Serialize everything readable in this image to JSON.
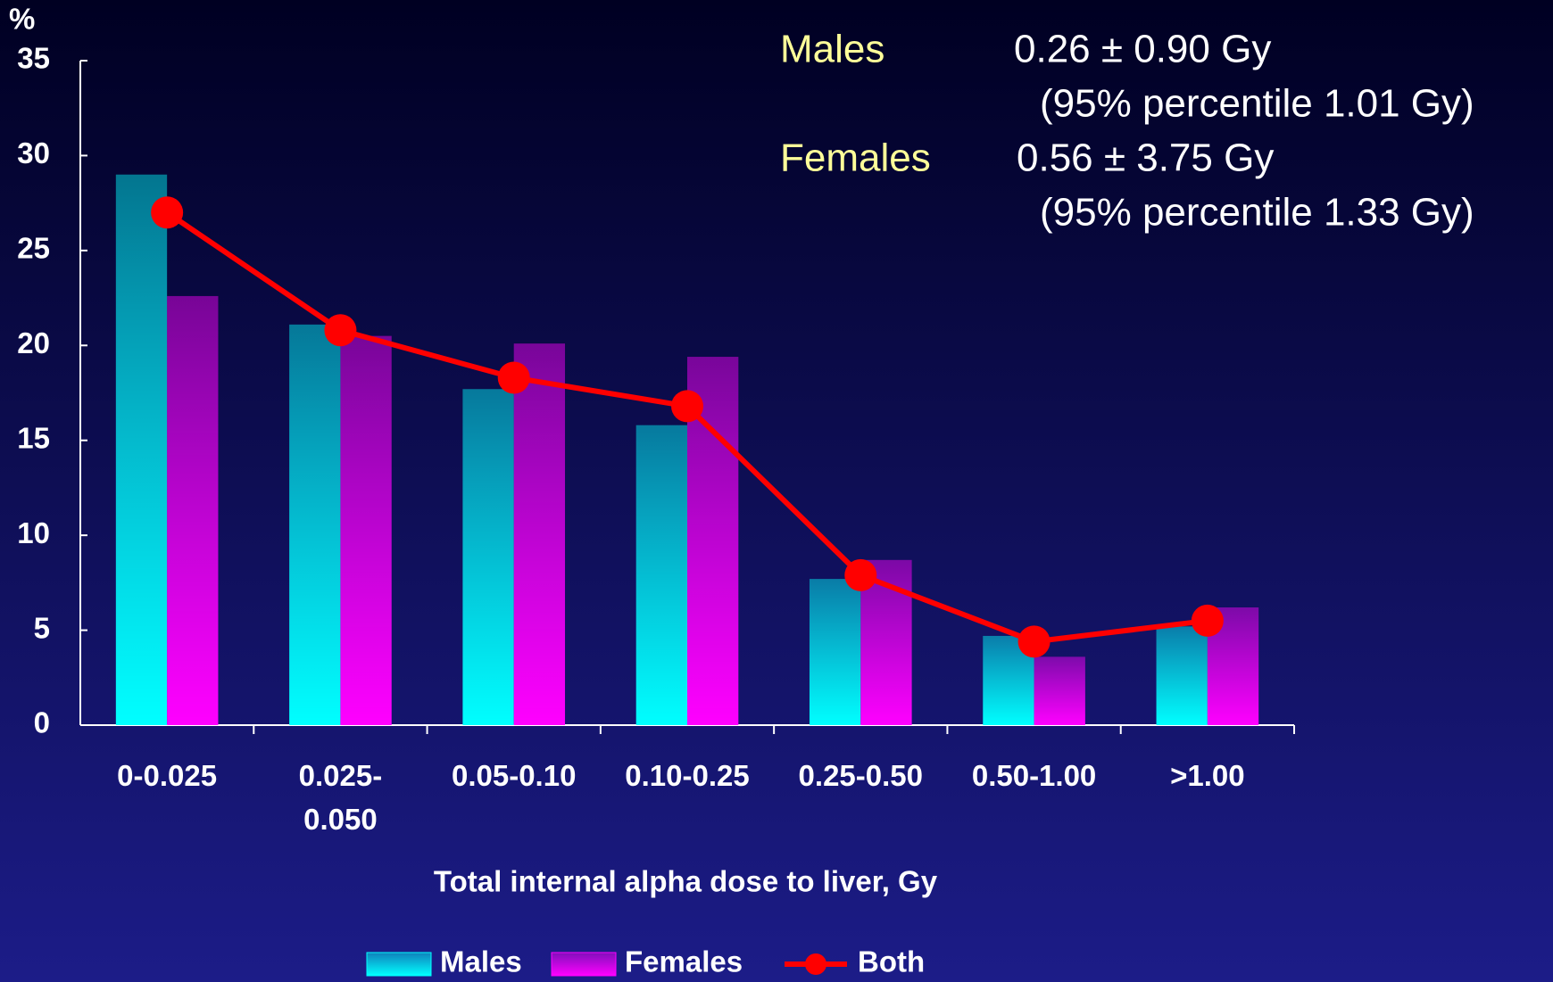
{
  "chart_data": {
    "type": "bar-line",
    "y_label": "%",
    "x_label": "Total internal alpha dose to liver, Gy",
    "categories": [
      "0-0.025",
      "0.025-\n0.050",
      "0.05-0.10",
      "0.10-0.25",
      "0.25-0.50",
      "0.50-1.00",
      ">1.00"
    ],
    "series": [
      {
        "name": "Males",
        "type": "bar",
        "color": "#00ffff",
        "values": [
          29.0,
          21.1,
          17.7,
          15.8,
          7.7,
          4.7,
          5.2
        ]
      },
      {
        "name": "Females",
        "type": "bar",
        "color": "#ff00ff",
        "values": [
          22.6,
          20.5,
          20.1,
          19.4,
          8.7,
          3.6,
          6.2
        ]
      },
      {
        "name": "Both",
        "type": "line",
        "color": "#ff0000",
        "values": [
          27.0,
          20.8,
          18.3,
          16.8,
          7.9,
          4.4,
          5.5
        ]
      }
    ],
    "ylim": [
      0,
      35
    ],
    "yticks": [
      0,
      5,
      10,
      15,
      20,
      25,
      30,
      35
    ],
    "annotations": [
      {
        "label": "Males",
        "value": "0.26 ± 0.90 Gy",
        "note": "(95% percentile 1.01 Gy)"
      },
      {
        "label": "Females",
        "value": "0.56 ± 3.75 Gy",
        "note": "(95% percentile 1.33 Gy)"
      }
    ]
  }
}
